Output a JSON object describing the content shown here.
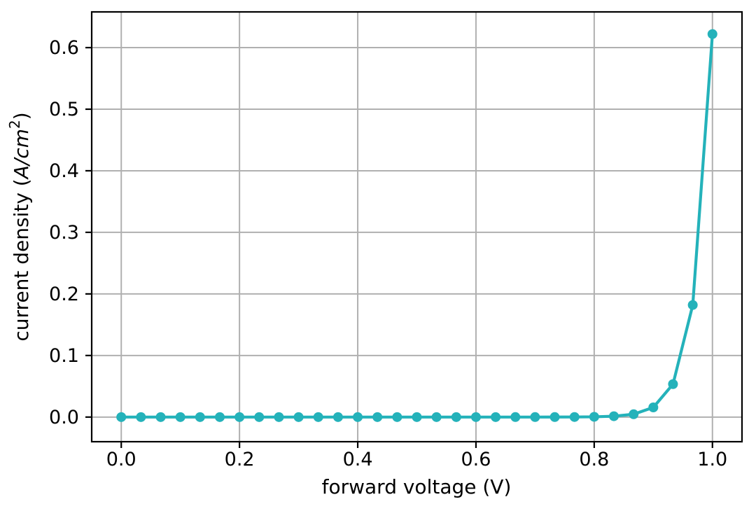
{
  "chart_data": {
    "type": "line",
    "title": "",
    "xlabel": "forward voltage (V)",
    "ylabel": "current density (A/cm^2)",
    "ylabel_parts": {
      "prefix": "current density (",
      "italic": "A/cm",
      "superscript": "2",
      "suffix": ")"
    },
    "x": [
      0.0,
      0.0333,
      0.0667,
      0.1,
      0.1333,
      0.1667,
      0.2,
      0.2333,
      0.2667,
      0.3,
      0.3333,
      0.3667,
      0.4,
      0.4333,
      0.4667,
      0.5,
      0.5333,
      0.5667,
      0.6,
      0.6333,
      0.6667,
      0.7,
      0.7333,
      0.7667,
      0.8,
      0.8333,
      0.8667,
      0.9,
      0.9333,
      0.9667,
      1.0
    ],
    "y": [
      0.0,
      0.0,
      0.0,
      0.0,
      0.0,
      0.0,
      0.0,
      0.0,
      0.0,
      0.0,
      0.0,
      0.0,
      0.0,
      0.0,
      0.0,
      0.0,
      0.0,
      0.0,
      0.0,
      1e-06,
      3e-06,
      1e-05,
      3.4e-05,
      0.000117,
      0.0004,
      0.0014,
      0.0046,
      0.0157,
      0.0535,
      0.182,
      0.622
    ],
    "xticks": {
      "values": [
        0.0,
        0.2,
        0.4,
        0.6,
        0.8,
        1.0
      ],
      "labels": [
        "0.0",
        "0.2",
        "0.4",
        "0.6",
        "0.8",
        "1.0"
      ]
    },
    "yticks": {
      "values": [
        0.0,
        0.1,
        0.2,
        0.3,
        0.4,
        0.5,
        0.6
      ],
      "labels": [
        "0.0",
        "0.1",
        "0.2",
        "0.3",
        "0.4",
        "0.5",
        "0.6"
      ]
    },
    "xlim": [
      -0.05,
      1.05
    ],
    "ylim": [
      -0.04,
      0.658
    ],
    "grid": true,
    "legend": "none",
    "marker": "circle",
    "colors": {
      "line": "#24b2ba",
      "marker": "#24b2ba",
      "grid": "#b0b0b0",
      "spine": "#000000",
      "background": "#ffffff",
      "text": "#000000"
    }
  }
}
